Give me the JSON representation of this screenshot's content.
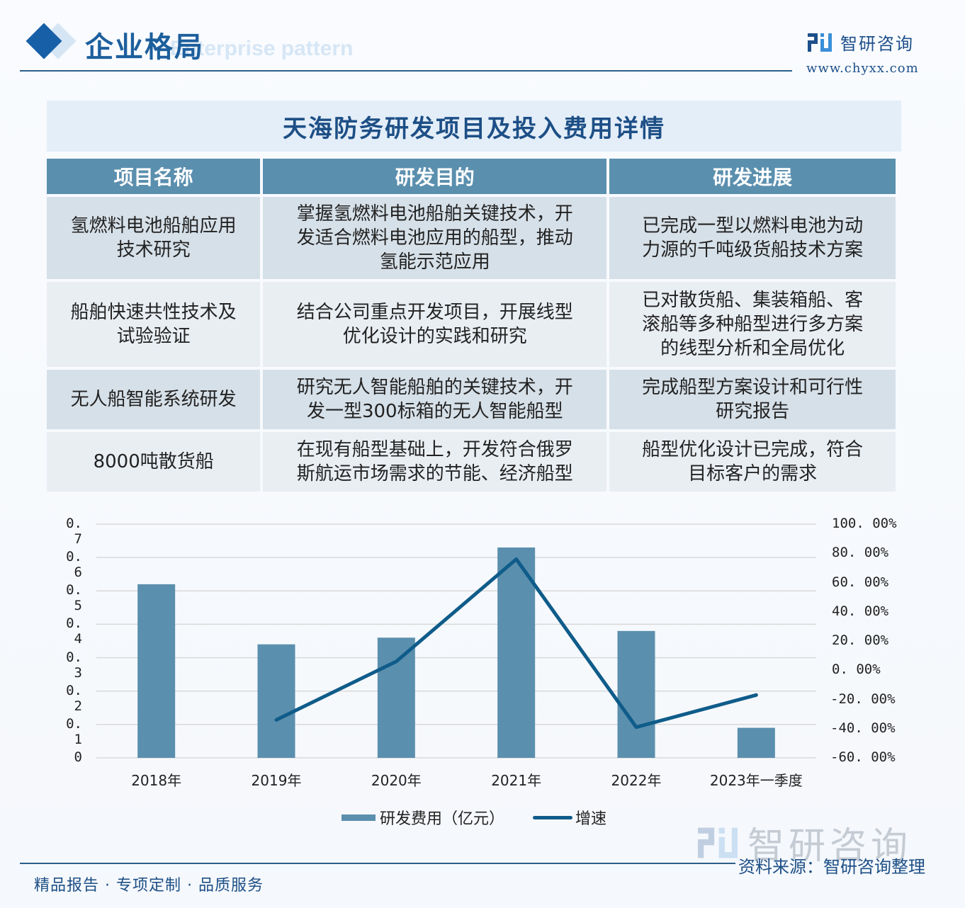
{
  "header": {
    "title": "企业格局",
    "subtitle_watermark": "Enterprise pattern",
    "brand_name": "智研咨询",
    "brand_url": "www.chyxx.com"
  },
  "table": {
    "title": "天海防务研发项目及投入费用详情",
    "columns": [
      "项目名称",
      "研发目的",
      "研发进展"
    ],
    "rows": [
      {
        "name_lines": [
          "氢燃料电池船舶应用",
          "技术研究"
        ],
        "purpose_lines": [
          "掌握氢燃料电池船舶关键技术，开",
          "发适合燃料电池应用的船型，推动",
          "氢能示范应用"
        ],
        "progress_lines": [
          "已完成一型以燃料电池为动",
          "力源的千吨级货船技术方案"
        ]
      },
      {
        "name_lines": [
          "船舶快速共性技术及",
          "试验验证"
        ],
        "purpose_lines": [
          "结合公司重点开发项目，开展线型",
          "优化设计的实践和研究"
        ],
        "progress_lines": [
          "已对散货船、集装箱船、客",
          "滚船等多种船型进行多方案",
          "的线型分析和全局优化"
        ]
      },
      {
        "name_lines": [
          "无人船智能系统研发"
        ],
        "purpose_lines": [
          "研究无人智能船舶的关键技术，开",
          "发一型300标箱的无人智能船型"
        ],
        "progress_lines": [
          "完成船型方案设计和可行性",
          "研究报告"
        ]
      },
      {
        "name_lines": [
          "8000吨散货船"
        ],
        "purpose_lines": [
          "在现有船型基础上，开发符合俄罗",
          "斯航运市场需求的节能、经济船型"
        ],
        "progress_lines": [
          "船型优化设计已完成，符合",
          "目标客户的需求"
        ]
      }
    ]
  },
  "chart_data": {
    "type": "bar+line",
    "title": "",
    "categories": [
      "2018年",
      "2019年",
      "2020年",
      "2021年",
      "2022年",
      "2023年一季度"
    ],
    "series": [
      {
        "name": "研发费用（亿元）",
        "type": "bar",
        "axis": "left",
        "color": "#5b8fae",
        "values": [
          0.52,
          0.34,
          0.36,
          0.63,
          0.38,
          0.09
        ]
      },
      {
        "name": "增速",
        "type": "line",
        "axis": "right",
        "color": "#0f5c8a",
        "values": [
          null,
          -34,
          6,
          76,
          -39,
          -17
        ]
      }
    ],
    "left_axis": {
      "min": 0,
      "max": 0.7,
      "ticks": [
        "0",
        "0.1",
        "0.2",
        "0.3",
        "0.4",
        "0.5",
        "0.6",
        "0.7"
      ]
    },
    "right_axis": {
      "min": -60,
      "max": 100,
      "ticks": [
        "-60.00%",
        "-40.00%",
        "-20.00%",
        "0.00%",
        "20.00%",
        "40.00%",
        "60.00%",
        "80.00%",
        "100.00%"
      ]
    },
    "grid": true,
    "legend_position": "bottom"
  },
  "footer": {
    "source": "资料来源：智研咨询整理",
    "tagline": "精品报告 · 专项定制 · 品质服务",
    "watermark_brand": "智研咨询"
  }
}
